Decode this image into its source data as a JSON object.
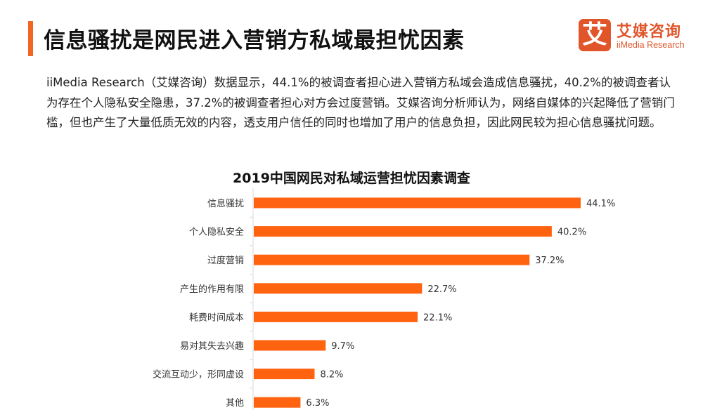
{
  "header": {
    "title": "信息骚扰是网民进入营销方私域最担忧因素"
  },
  "logo": {
    "mark": "艾",
    "name_cn": "艾媒咨询",
    "name_en": "iiMedia Research"
  },
  "paragraph": "iiMedia Research（艾媒咨询）数据显示，44.1%的被调查者担心进入营销方私域会造成信息骚扰，40.2%的被调查者认为存在个人隐私安全隐患，37.2%的被调查者担心对方会过度营销。艾媒咨询分析师认为，网络自媒体的兴起降低了营销门槛，但也产生了大量低质无效的内容，透支用户信任的同时也增加了用户的信息负担，因此网民较为担心信息骚扰问题。",
  "colors": {
    "accent": "#f26522",
    "bar": "#ff6310",
    "logo": "#e0552a"
  },
  "chart_data": {
    "type": "bar",
    "orientation": "horizontal",
    "title": "2019中国网民对私域运营担忧因素调查",
    "categories": [
      "信息骚扰",
      "个人隐私安全",
      "过度营销",
      "产生的作用有限",
      "耗费时间成本",
      "易对其失去兴趣",
      "交流互动少，形同虚设",
      "其他"
    ],
    "values": [
      44.1,
      40.2,
      37.2,
      22.7,
      22.1,
      9.7,
      8.2,
      6.3
    ],
    "labels": [
      "44.1%",
      "40.2%",
      "37.2%",
      "22.7%",
      "22.1%",
      "9.7%",
      "8.2%",
      "6.3%"
    ],
    "unit": "%",
    "xlim": [
      0,
      44.1
    ],
    "grid": false
  }
}
